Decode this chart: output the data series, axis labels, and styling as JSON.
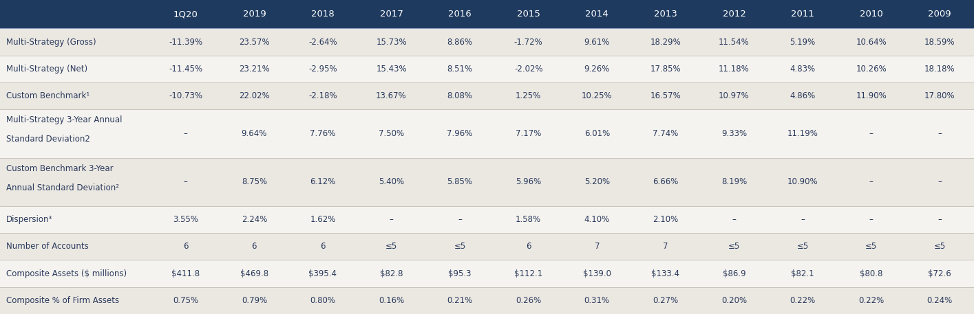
{
  "header_bg": "#1e3a5f",
  "header_text_color": "#ffffff",
  "text_color": "#2a3a5c",
  "columns": [
    "",
    "1Q20",
    "2019",
    "2018",
    "2017",
    "2016",
    "2015",
    "2014",
    "2013",
    "2012",
    "2011",
    "2010",
    "2009"
  ],
  "rows": [
    {
      "label": "Multi-Strategy (Gross)",
      "values": [
        "-11.39%",
        "23.57%",
        "-2.64%",
        "15.73%",
        "8.86%",
        "-1.72%",
        "9.61%",
        "18.29%",
        "11.54%",
        "5.19%",
        "10.64%",
        "18.59%"
      ],
      "bg": "#ebe8e2",
      "multiline": false
    },
    {
      "label": "Multi-Strategy (Net)",
      "values": [
        "-11.45%",
        "23.21%",
        "-2.95%",
        "15.43%",
        "8.51%",
        "-2.02%",
        "9.26%",
        "17.85%",
        "11.18%",
        "4.83%",
        "10.26%",
        "18.18%"
      ],
      "bg": "#f5f3ef",
      "multiline": false
    },
    {
      "label": "Custom Benchmark¹",
      "values": [
        "-10.73%",
        "22.02%",
        "-2.18%",
        "13.67%",
        "8.08%",
        "1.25%",
        "10.25%",
        "16.57%",
        "10.97%",
        "4.86%",
        "11.90%",
        "17.80%"
      ],
      "bg": "#ebe8e2",
      "multiline": false
    },
    {
      "label": "Multi-Strategy 3-Year Annual\nStandard Deviation2",
      "values": [
        "–",
        "9.64%",
        "7.76%",
        "7.50%",
        "7.96%",
        "7.17%",
        "6.01%",
        "7.74%",
        "9.33%",
        "11.19%",
        "–",
        "–"
      ],
      "bg": "#f5f3ef",
      "multiline": true
    },
    {
      "label": "Custom Benchmark 3-Year\nAnnual Standard Deviation²",
      "values": [
        "–",
        "8.75%",
        "6.12%",
        "5.40%",
        "5.85%",
        "5.96%",
        "5.20%",
        "6.66%",
        "8.19%",
        "10.90%",
        "–",
        "–"
      ],
      "bg": "#ebe8e2",
      "multiline": true
    },
    {
      "label": "Dispersion³",
      "values": [
        "3.55%",
        "2.24%",
        "1.62%",
        "–",
        "–",
        "1.58%",
        "4.10%",
        "2.10%",
        "–",
        "–",
        "–",
        "–"
      ],
      "bg": "#f5f3ef",
      "multiline": false
    },
    {
      "label": "Number of Accounts",
      "values": [
        "6",
        "6",
        "6",
        "≤5",
        "≤5",
        "6",
        "7",
        "7",
        "≤5",
        "≤5",
        "≤5",
        "≤5"
      ],
      "bg": "#ebe8e2",
      "multiline": false
    },
    {
      "label": "Composite Assets ($ millions)",
      "values": [
        "$411.8",
        "$469.8",
        "$395.4",
        "$82.8",
        "$95.3",
        "$112.1",
        "$139.0",
        "$133.4",
        "$86.9",
        "$82.1",
        "$80.8",
        "$72.6"
      ],
      "bg": "#f5f3ef",
      "multiline": false
    },
    {
      "label": "Composite % of Firm Assets",
      "values": [
        "0.75%",
        "0.79%",
        "0.80%",
        "0.16%",
        "0.21%",
        "0.26%",
        "0.31%",
        "0.27%",
        "0.20%",
        "0.22%",
        "0.22%",
        "0.24%"
      ],
      "bg": "#ebe8e2",
      "multiline": false
    }
  ],
  "divider_color": "#c8c4bc",
  "header_divider_color": "#c8c4bc"
}
